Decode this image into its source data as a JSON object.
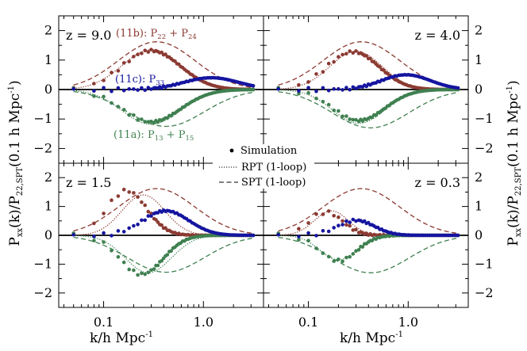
{
  "chart_data": {
    "type": "scatter",
    "ylabel_main": "P",
    "ylabel_sub": "xx",
    "ylabel_rest": "(k)/P",
    "ylabel_sub2": "22,SPT",
    "ylabel_tail": "(0.1 h Mpc",
    "ylabel_sup": "-1",
    "ylabel_close": ")",
    "xlabel_main": "k/h Mpc",
    "xlabel_sup": "-1",
    "x_scale": "log",
    "xlim": [
      0.0355,
      4.0
    ],
    "ylim": [
      -2.5,
      2.5
    ],
    "x_ticks": [
      {
        "value": 0.1,
        "label": "0.1"
      },
      {
        "value": 1.0,
        "label": "1.0"
      }
    ],
    "y_ticks": [
      {
        "value": 2,
        "label": "2"
      },
      {
        "value": 1,
        "label": "1"
      },
      {
        "value": 0,
        "label": "0"
      },
      {
        "value": -1,
        "label": "−1"
      },
      {
        "value": -2,
        "label": "−2"
      }
    ],
    "colors": {
      "p22p24": "#8b3a32",
      "p33": "#1515a0",
      "p13p15": "#3f8050",
      "zero_line": "#000000"
    },
    "legend": {
      "simulation": "Simulation",
      "rpt": "RPT (1-loop)",
      "spt": "SPT (1-loop)"
    },
    "annotations": {
      "a11b_pre": "(11b): P",
      "a11b_s1": "22",
      "a11b_mid": " + P",
      "a11b_s2": "24",
      "a11c_pre": "(11c): P",
      "a11c_s1": "33",
      "a11a_pre": "(11a): P",
      "a11a_s1": "13",
      "a11a_mid": " + P",
      "a11a_s2": "15"
    },
    "panels": [
      {
        "label": "z = 9.0",
        "label_pos": "top-left",
        "spt_22": {
          "amp": 1.62,
          "peak": 0.34,
          "width": 1.25
        },
        "rpt_22": {
          "amp": 1.35,
          "peak": 0.3,
          "width": 0.95
        },
        "spt_13": {
          "amp": -1.25,
          "peak": 0.42,
          "width": 1.25
        },
        "rpt_13": {
          "amp": -1.18,
          "peak": 0.3,
          "width": 0.95
        },
        "sim_22": {
          "amp": 1.32,
          "peak": 0.3,
          "width": 0.95,
          "kmin": 0.05
        },
        "sim_13": {
          "amp": -1.1,
          "peak": 0.3,
          "width": 0.95,
          "kmin": 0.05
        },
        "sim_33": {
          "amp": 0.4,
          "peak": 1.2,
          "width": 0.9,
          "kmin": 0.05
        }
      },
      {
        "label": "z = 4.0",
        "label_pos": "top-right",
        "spt_22": {
          "amp": 1.62,
          "peak": 0.34,
          "width": 1.25
        },
        "rpt_22": {
          "amp": 1.3,
          "peak": 0.3,
          "width": 0.85
        },
        "spt_13": {
          "amp": -1.3,
          "peak": 0.42,
          "width": 1.25
        },
        "rpt_13": {
          "amp": -1.15,
          "peak": 0.32,
          "width": 0.85
        },
        "sim_22": {
          "amp": 1.28,
          "peak": 0.28,
          "width": 0.85,
          "kmin": 0.05
        },
        "sim_13": {
          "amp": -1.05,
          "peak": 0.32,
          "width": 0.85,
          "kmin": 0.05
        },
        "sim_33": {
          "amp": 0.5,
          "peak": 0.95,
          "width": 0.8,
          "kmin": 0.05
        }
      },
      {
        "label": "z = 1.5",
        "label_pos": "top-left",
        "spt_22": {
          "amp": 1.62,
          "peak": 0.34,
          "width": 1.25
        },
        "rpt_22": {
          "amp": 1.4,
          "peak": 0.25,
          "width": 0.7
        },
        "spt_13": {
          "amp": -1.28,
          "peak": 0.42,
          "width": 1.25
        },
        "rpt_13": {
          "amp": -1.3,
          "peak": 0.28,
          "width": 0.75
        },
        "sim_22": {
          "amp": 1.55,
          "peak": 0.17,
          "width": 0.65,
          "kmin": 0.05
        },
        "sim_13": {
          "amp": -1.35,
          "peak": 0.24,
          "width": 0.7,
          "kmin": 0.05
        },
        "sim_33": {
          "amp": 0.85,
          "peak": 0.42,
          "width": 0.75,
          "kmin": 0.05
        }
      },
      {
        "label": "z = 0.3",
        "label_pos": "top-right",
        "spt_22": {
          "amp": 1.62,
          "peak": 0.34,
          "width": 1.25
        },
        "rpt_22": {
          "amp": 0.85,
          "peak": 0.17,
          "width": 0.55
        },
        "spt_13": {
          "amp": -1.3,
          "peak": 0.42,
          "width": 1.25
        },
        "rpt_13": {
          "amp": -0.85,
          "peak": 0.2,
          "width": 0.6
        },
        "sim_22": {
          "amp": 0.8,
          "peak": 0.15,
          "width": 0.55,
          "kmin": 0.05
        },
        "sim_13": {
          "amp": -0.88,
          "peak": 0.2,
          "width": 0.6,
          "kmin": 0.05
        },
        "sim_33": {
          "amp": 0.52,
          "peak": 0.3,
          "width": 0.6,
          "kmin": 0.05
        }
      }
    ]
  }
}
